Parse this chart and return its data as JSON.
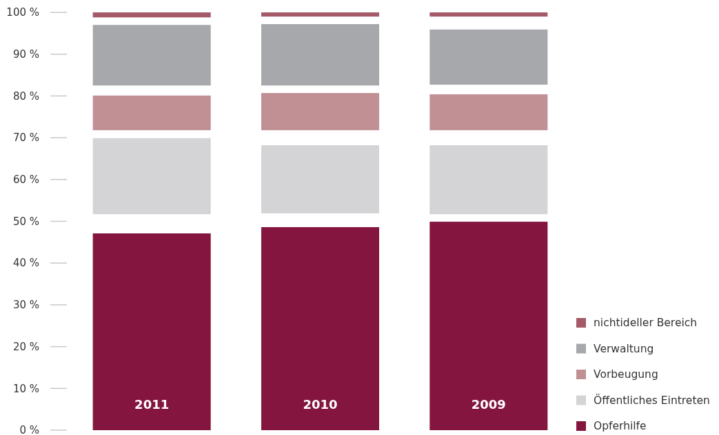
{
  "chart_data": {
    "type": "bar",
    "categories": [
      "2011",
      "2010",
      "2009"
    ],
    "series": [
      {
        "name": "Opferhilfe",
        "color": "#83153f",
        "base": [
          0,
          0,
          0
        ],
        "values": [
          47.1,
          48.6,
          49.9
        ]
      },
      {
        "name": "Öffentliches Eintreten",
        "color": "#d4d4d6",
        "base": [
          51.7,
          51.9,
          51.7
        ],
        "values": [
          18.2,
          16.3,
          16.5
        ]
      },
      {
        "name": "Vorbeugung",
        "color": "#c09095",
        "base": [
          71.8,
          71.8,
          71.8
        ],
        "values": [
          8.3,
          8.9,
          8.6
        ]
      },
      {
        "name": "Verwaltung",
        "color": "#a7a8ab",
        "base": [
          82.5,
          82.5,
          82.7
        ],
        "values": [
          14.5,
          14.7,
          13.2
        ]
      },
      {
        "name": "nichtideller Bereich",
        "color": "#a45a68",
        "base": [
          98.8,
          99.0,
          99.0
        ],
        "values": [
          1.2,
          1.0,
          1.0
        ]
      }
    ],
    "ylim": [
      0,
      100
    ],
    "yticks": [
      {
        "value": 0,
        "label": "0 %"
      },
      {
        "value": 10,
        "label": "10 %"
      },
      {
        "value": 20,
        "label": "20 %"
      },
      {
        "value": 30,
        "label": "30 %"
      },
      {
        "value": 40,
        "label": "40 %"
      },
      {
        "value": 50,
        "label": "50 %"
      },
      {
        "value": 60,
        "label": "60 %"
      },
      {
        "value": 70,
        "label": "70 %"
      },
      {
        "value": 80,
        "label": "80 %"
      },
      {
        "value": 90,
        "label": "90 %"
      },
      {
        "value": 100,
        "label": "100 %"
      }
    ],
    "legend": "bottom right"
  }
}
